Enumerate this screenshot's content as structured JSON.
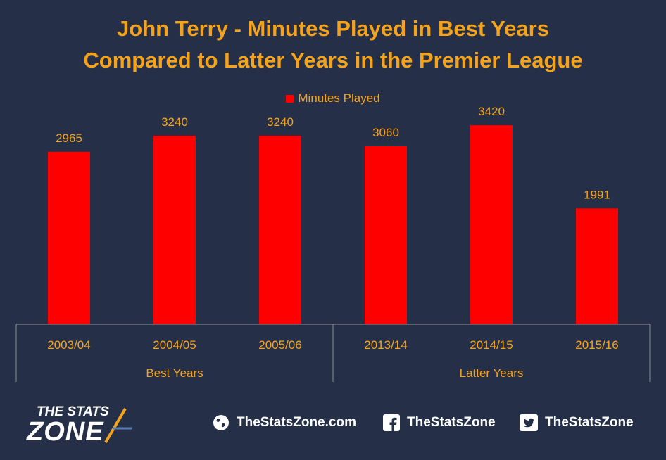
{
  "title_line1": "John Terry - Minutes Played in Best Years",
  "title_line2": "Compared to Latter Years in the Premier League",
  "colors": {
    "bar": "#ff0000",
    "text": "#f5a31a",
    "axis": "#8a8f99",
    "background": "#253048"
  },
  "chart_data": {
    "type": "bar",
    "title": "John Terry - Minutes Played in Best Years Compared to Latter Years in the Premier League",
    "categories": [
      "2003/04",
      "2004/05",
      "2005/06",
      "2013/14",
      "2014/15",
      "2015/16"
    ],
    "groups": [
      {
        "label": "Best Years",
        "categories": [
          "2003/04",
          "2004/05",
          "2005/06"
        ]
      },
      {
        "label": "Latter Years",
        "categories": [
          "2013/14",
          "2014/15",
          "2015/16"
        ]
      }
    ],
    "series": [
      {
        "name": "Minutes Played",
        "values": [
          2965,
          3240,
          3240,
          3060,
          3420,
          1991
        ]
      }
    ],
    "data_labels": true,
    "legend": "top",
    "grid": false,
    "ylim": [
      0,
      3700
    ]
  },
  "footer": {
    "logo_top": "THE STATS",
    "logo_bottom": "ZONE",
    "website": "TheStatsZone.com",
    "facebook": "TheStatsZone",
    "twitter": "TheStatsZone"
  }
}
